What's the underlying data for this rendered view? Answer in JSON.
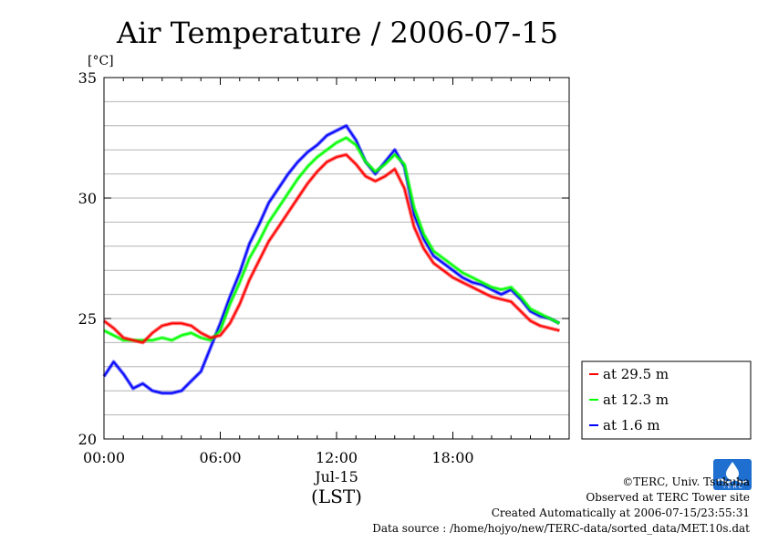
{
  "chart_data": {
    "type": "line",
    "title": "Air Temperature / 2006-07-15",
    "ylabel": "[°C]",
    "xlabel_date": "Jul-15",
    "xlabel_tz": "(LST)",
    "xlim": [
      0,
      24
    ],
    "ylim": [
      20,
      35
    ],
    "xticks": [
      {
        "value": 0,
        "label": "00:00"
      },
      {
        "value": 6,
        "label": "06:00"
      },
      {
        "value": 12,
        "label": "12:00"
      },
      {
        "value": 18,
        "label": "18:00"
      }
    ],
    "yticks": [
      {
        "value": 20,
        "label": "20"
      },
      {
        "value": 25,
        "label": "25"
      },
      {
        "value": 30,
        "label": "30"
      },
      {
        "value": 35,
        "label": "35"
      }
    ],
    "grid": true,
    "legend_position": "right-bottom",
    "x": [
      0,
      0.5,
      1,
      1.5,
      2,
      2.5,
      3,
      3.5,
      4,
      4.5,
      5,
      5.5,
      6,
      6.5,
      7,
      7.5,
      8,
      8.5,
      9,
      9.5,
      10,
      10.5,
      11,
      11.5,
      12,
      12.5,
      13,
      13.5,
      14,
      14.5,
      15,
      15.5,
      16,
      16.5,
      17,
      17.5,
      18,
      18.5,
      19,
      19.5,
      20,
      20.5,
      21,
      21.5,
      22,
      22.5,
      23,
      23.5
    ],
    "series": [
      {
        "name": "at 29.5 m",
        "color": "#ff0000",
        "values": [
          24.9,
          24.6,
          24.2,
          24.1,
          24.0,
          24.4,
          24.7,
          24.8,
          24.8,
          24.7,
          24.4,
          24.2,
          24.3,
          24.8,
          25.6,
          26.6,
          27.4,
          28.2,
          28.8,
          29.4,
          30.0,
          30.6,
          31.1,
          31.5,
          31.7,
          31.8,
          31.4,
          30.9,
          30.7,
          30.9,
          31.2,
          30.4,
          28.8,
          27.9,
          27.3,
          27.0,
          26.7,
          26.5,
          26.3,
          26.1,
          25.9,
          25.8,
          25.7,
          25.3,
          24.9,
          24.7,
          24.6,
          24.5
        ]
      },
      {
        "name": "at 12.3 m",
        "color": "#00ff00",
        "values": [
          24.5,
          24.3,
          24.1,
          24.1,
          24.1,
          24.1,
          24.2,
          24.1,
          24.3,
          24.4,
          24.2,
          24.1,
          24.5,
          25.6,
          26.5,
          27.5,
          28.2,
          29.0,
          29.6,
          30.2,
          30.8,
          31.3,
          31.7,
          32.0,
          32.3,
          32.5,
          32.2,
          31.5,
          31.1,
          31.4,
          31.8,
          31.4,
          29.6,
          28.5,
          27.8,
          27.5,
          27.2,
          26.9,
          26.7,
          26.5,
          26.3,
          26.2,
          26.3,
          25.9,
          25.4,
          25.2,
          25.0,
          24.8
        ]
      },
      {
        "name": "at 1.6 m",
        "color": "#0000ff",
        "values": [
          22.6,
          23.2,
          22.7,
          22.1,
          22.3,
          22.0,
          21.9,
          21.9,
          22.0,
          22.4,
          22.8,
          23.8,
          24.8,
          25.9,
          26.9,
          28.1,
          28.9,
          29.8,
          30.4,
          31.0,
          31.5,
          31.9,
          32.2,
          32.6,
          32.8,
          33.0,
          32.4,
          31.5,
          31.0,
          31.5,
          32.0,
          31.3,
          29.3,
          28.3,
          27.6,
          27.3,
          27.0,
          26.7,
          26.5,
          26.4,
          26.2,
          26.0,
          26.2,
          25.8,
          25.3,
          25.1,
          25.0,
          24.8
        ]
      }
    ]
  },
  "credits": {
    "copyright": "©TERC, Univ. Tsukuba",
    "observed": "Observed at TERC Tower site",
    "created": "Created Automatically at 2006-07-15/23:55:31",
    "source": "Data source : /home/hojyo/new/TERC-data/sorted_data/MET.10s.dat"
  },
  "logo": {
    "text": "T E R C",
    "color": "#1e6fd0"
  }
}
